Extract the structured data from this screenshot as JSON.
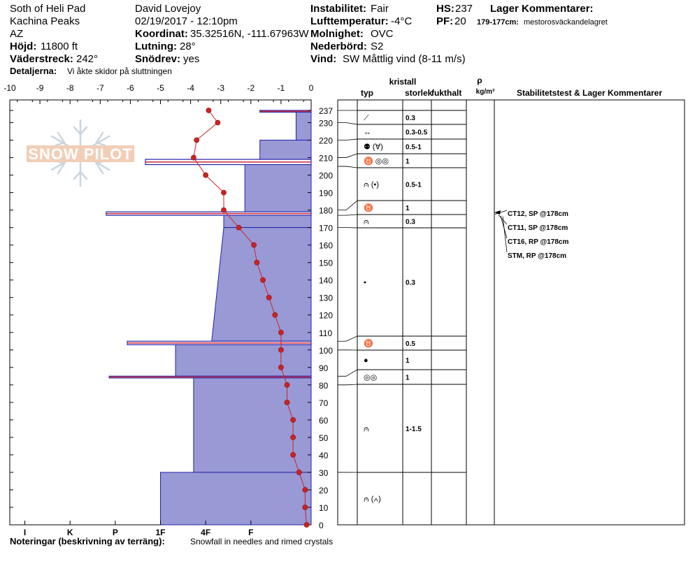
{
  "header": {
    "location": "Soth of Heli Pad",
    "range": "Kachina Peaks",
    "state": "AZ",
    "elevation_label": "Höjd:",
    "elevation": "11800 ft",
    "aspect_label": "Väderstreck:",
    "aspect": "242°",
    "details_label": "Detaljerna:",
    "details": "Vi åkte skidor på sluttningen",
    "observer": "David Lovejoy",
    "datetime": "02/19/2017 - 12:10pm",
    "coord_label": "Koordinat:",
    "coord": "35.32516N, -111.67963W",
    "slope_label": "Lutning:",
    "slope": "28°",
    "blowing_label": "Snödrev:",
    "blowing": "yes",
    "stability_label": "Instabilitet:",
    "stability": "Fair",
    "airtemp_label": "Lufttemperatur:",
    "airtemp": "-4°C",
    "sky_label": "Molnighet:",
    "sky": "OVC",
    "precip_label": "Nederbörd:",
    "precip": "S2",
    "wind_label": "Vind:",
    "wind": "SW  Måttlig vind (8-11 m/s)",
    "hs_label": "HS:",
    "hs": "237",
    "pf_label": "PF:",
    "pf": "20",
    "layer_comments_label": "Lager Kommentarer:",
    "layer_comment_range": "179-177cm:",
    "layer_comment_text": "mestorosväckandelagret"
  },
  "footer": {
    "notes_label": "Noteringar (beskrivning av terräng):",
    "notes": "Snowfall in needles and rimed crystals"
  },
  "logo": {
    "text": "SNOW PILOT"
  },
  "table": {
    "crystal_label": "kristall",
    "type_label": "typ",
    "size_label": "storlek",
    "moisture_label": "fukthalt",
    "rho_label": "ρ",
    "density_unit": "kg/m³",
    "stability_label": "Stabilitetstest & Lager Kommentarer",
    "layers": [
      {
        "top": 237,
        "bottom": 230,
        "type": "⟋",
        "size": "0.3"
      },
      {
        "top": 230,
        "bottom": 220,
        "type": "↔",
        "size": "0.3-0.5"
      },
      {
        "top": 220,
        "bottom": 210,
        "type": "⚉ (∀)",
        "size": "0.5-1"
      },
      {
        "top": 210,
        "bottom": 205,
        "type": "♉ ◎◎",
        "size": "1"
      },
      {
        "top": 205,
        "bottom": 180,
        "type": "⩀ (•)",
        "size": "0.5-1"
      },
      {
        "top": 180,
        "bottom": 177,
        "type": "♉",
        "size": "1"
      },
      {
        "top": 177,
        "bottom": 170,
        "type": "⩀",
        "size": "0.3"
      },
      {
        "top": 170,
        "bottom": 105,
        "type": "•",
        "size": "0.3"
      },
      {
        "top": 105,
        "bottom": 100,
        "type": "♉",
        "size": "0.5"
      },
      {
        "top": 100,
        "bottom": 85,
        "type": "●",
        "size": "1"
      },
      {
        "top": 85,
        "bottom": 80,
        "type": "◎◎",
        "size": "1"
      },
      {
        "top": 80,
        "bottom": 30,
        "type": "⩀",
        "size": "1-1.5"
      },
      {
        "top": 30,
        "bottom": 0,
        "type": "⩀ (∧)",
        "size": ""
      }
    ],
    "tests": [
      {
        "label": "CT12, SP @178cm"
      },
      {
        "label": "CT11, SP @178cm"
      },
      {
        "label": "CT16, RP @178cm"
      },
      {
        "label": "STM, RP @178cm"
      }
    ]
  },
  "chart_data": {
    "type": "line",
    "x_axis_top": {
      "label": "",
      "range": [
        -10,
        0
      ],
      "ticks": [
        -10,
        -9,
        -8,
        -7,
        -6,
        -5,
        -4,
        -3,
        -2,
        -1,
        0
      ],
      "tick_labels": [
        "-10",
        "-9",
        "-8",
        "-7",
        "-6",
        "-5",
        "-4",
        "-3",
        "-2",
        "-1",
        "0"
      ]
    },
    "x_axis_bottom": {
      "labels": [
        "I",
        "K",
        "P",
        "1F",
        "4F",
        "F"
      ]
    },
    "y_axis": {
      "range": [
        0,
        237
      ],
      "ticks": [
        0,
        10,
        20,
        30,
        40,
        50,
        60,
        70,
        80,
        90,
        100,
        110,
        120,
        130,
        140,
        150,
        160,
        170,
        180,
        190,
        200,
        210,
        220,
        230,
        237
      ],
      "tick_labels": [
        "0",
        "10",
        "20",
        "30",
        "40",
        "50",
        "60",
        "70",
        "80",
        "90",
        "100",
        "110",
        "120",
        "130",
        "140",
        "150",
        "160",
        "170",
        "180",
        "190",
        "200",
        "210",
        "220",
        "230",
        "237"
      ]
    },
    "temperature_profile": {
      "depth": [
        237,
        230,
        220,
        210,
        200,
        190,
        180,
        170,
        160,
        150,
        140,
        130,
        120,
        110,
        100,
        90,
        80,
        70,
        60,
        50,
        40,
        30,
        20,
        10,
        0
      ],
      "temp": [
        -3.4,
        -3.1,
        -3.8,
        -3.9,
        -3.5,
        -2.9,
        -2.9,
        -2.4,
        -1.9,
        -1.8,
        -1.6,
        -1.4,
        -1.2,
        -1.0,
        -1.0,
        -1.0,
        -0.8,
        -0.8,
        -0.6,
        -0.6,
        -0.6,
        -0.4,
        -0.2,
        -0.2,
        -0.15
      ],
      "line_color": "#cc2222"
    },
    "hardness_profile": {
      "fill_color": "#9999d6",
      "stroke_color": "#2222aa",
      "layers": [
        {
          "top": 237,
          "bottom": 236,
          "hardness": -1.7
        },
        {
          "top": 236,
          "bottom": 220,
          "hardness": -0.5
        },
        {
          "top": 220,
          "bottom": 209,
          "hardness": -1.7
        },
        {
          "top": 209,
          "bottom": 206,
          "hardness": -5.5
        },
        {
          "top": 206,
          "bottom": 179,
          "hardness": -2.2
        },
        {
          "top": 179,
          "bottom": 177,
          "hardness": -6.8
        },
        {
          "top": 177,
          "bottom": 170,
          "hardness": -2.9
        },
        {
          "top": 170,
          "bottom": 105,
          "hardness": -3.3,
          "bottom_hardness": -3.3,
          "top_hardness": -2.9
        },
        {
          "top": 105,
          "bottom": 103,
          "hardness": -6.1
        },
        {
          "top": 103,
          "bottom": 85,
          "hardness": -4.5
        },
        {
          "top": 85,
          "bottom": 84,
          "hardness": -6.7
        },
        {
          "top": 84,
          "bottom": 30,
          "hardness": -3.9
        },
        {
          "top": 30,
          "bottom": 0,
          "hardness": -5.0
        }
      ]
    }
  }
}
